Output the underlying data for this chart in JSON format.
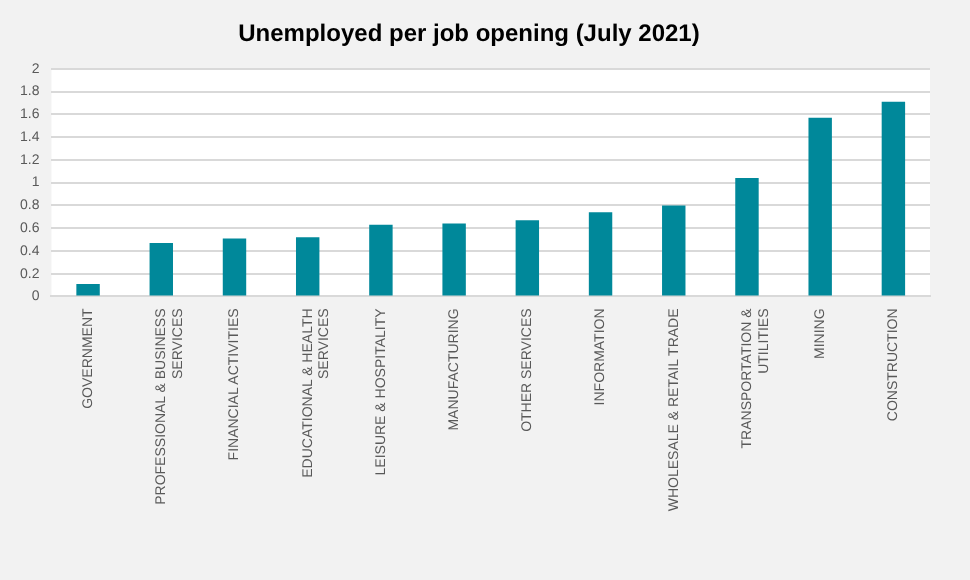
{
  "chart_data": {
    "type": "bar",
    "title": "Unemployed per job opening (July 2021)",
    "categories": [
      "GOVERNMENT",
      "PROFESSIONAL & BUSINESS SERVICES",
      "FINANCIAL ACTIVITIES",
      "EDUCATIONAL & HEALTH SERVICES",
      "LEISURE & HOSPITALITY",
      "MANUFACTURING",
      "OTHER SERVICES",
      "INFORMATION",
      "WHOLESALE & RETAIL TRADE",
      "TRANSPORTATION & UTILITIES",
      "MINING",
      "CONSTRUCTION"
    ],
    "values": [
      0.11,
      0.47,
      0.51,
      0.52,
      0.63,
      0.64,
      0.67,
      0.74,
      0.8,
      1.04,
      1.57,
      1.71
    ],
    "color": "#00889a",
    "ylim": [
      0,
      2
    ],
    "yticks": [
      0,
      0.2,
      0.4,
      0.6,
      0.8,
      1,
      1.2,
      1.4,
      1.6,
      1.8,
      2
    ],
    "grid": "y"
  }
}
